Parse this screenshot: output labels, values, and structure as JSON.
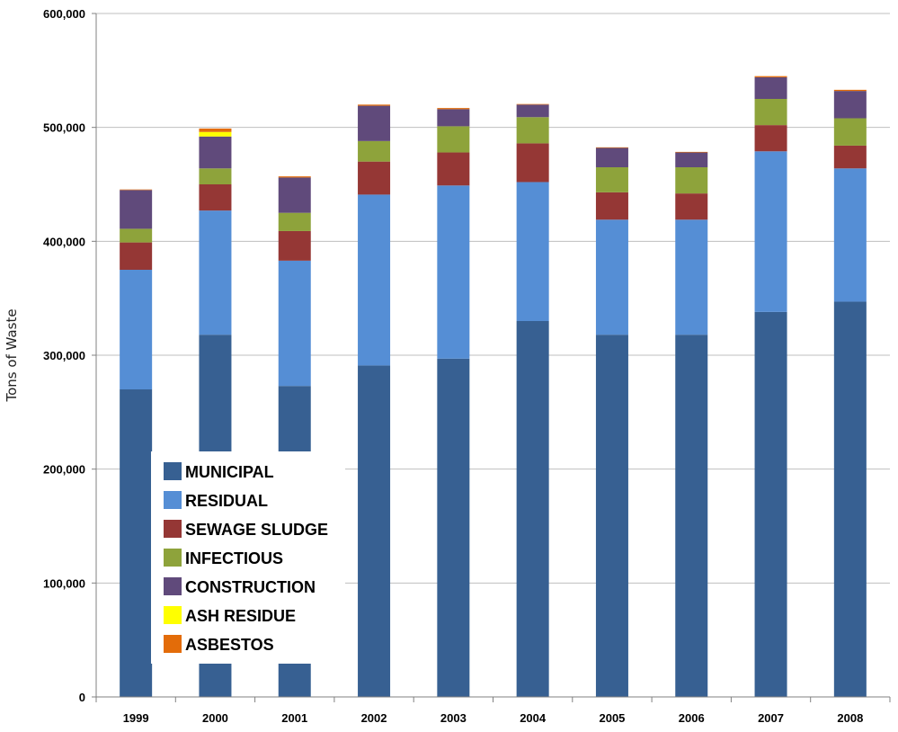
{
  "colors": {
    "gridline": "#bfbfbf",
    "axis": "#808080",
    "background": "#ffffff"
  },
  "chart_data": {
    "type": "bar",
    "stacked": true,
    "title": "",
    "xlabel": "",
    "ylabel": "Tons of Waste",
    "ylim": [
      0,
      600000
    ],
    "yticks": [
      0,
      100000,
      200000,
      300000,
      400000,
      500000,
      600000
    ],
    "ytick_labels": [
      "0",
      "100,000",
      "200,000",
      "300,000",
      "400,000",
      "500,000",
      "600,000"
    ],
    "grid": true,
    "legend_position": "lower-left",
    "categories": [
      "1999",
      "2000",
      "2001",
      "2002",
      "2003",
      "2004",
      "2005",
      "2006",
      "2007",
      "2008"
    ],
    "series": [
      {
        "name": "MUNICIPAL",
        "color": "#376092",
        "values": [
          270000,
          318000,
          273000,
          291000,
          297000,
          330000,
          318000,
          318000,
          338000,
          347000
        ]
      },
      {
        "name": "RESIDUAL",
        "color": "#558ed5",
        "values": [
          105000,
          109000,
          110000,
          150000,
          152000,
          122000,
          101000,
          101000,
          141000,
          117000
        ]
      },
      {
        "name": "SEWAGE SLUDGE",
        "color": "#953735",
        "values": [
          24000,
          23000,
          26000,
          29000,
          29000,
          34000,
          24000,
          23000,
          23000,
          20000
        ]
      },
      {
        "name": "INFECTIOUS",
        "color": "#8ea33b",
        "values": [
          12000,
          14000,
          16000,
          18000,
          23000,
          23000,
          22000,
          23000,
          23000,
          24000
        ]
      },
      {
        "name": "CONSTRUCTION",
        "color": "#604a7b",
        "values": [
          34000,
          28000,
          31000,
          31000,
          15000,
          11000,
          17000,
          13000,
          19000,
          24000
        ]
      },
      {
        "name": "ASH RESIDUE",
        "color": "#ffff00",
        "values": [
          0,
          4000,
          0,
          0,
          0,
          0,
          0,
          0,
          0,
          0
        ]
      },
      {
        "name": "ASBESTOS",
        "color": "#e36c09",
        "values": [
          500,
          3000,
          1000,
          1000,
          1000,
          500,
          500,
          500,
          1000,
          1000
        ]
      }
    ]
  }
}
